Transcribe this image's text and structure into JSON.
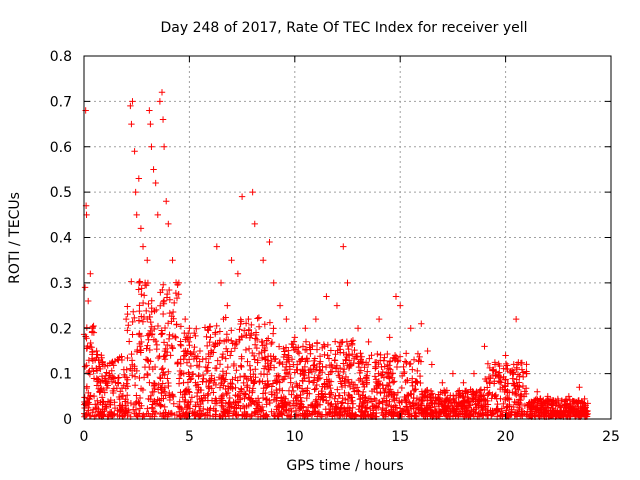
{
  "chart_data": {
    "type": "scatter",
    "title": "Day 248 of 2017, Rate Of TEC Index for receiver yell",
    "xlabel": "GPS time / hours",
    "ylabel": "ROTI / TECUs",
    "xlim": [
      0,
      25
    ],
    "ylim": [
      0,
      0.8
    ],
    "xticks": [
      "0",
      "5",
      "10",
      "15",
      "20",
      "25"
    ],
    "yticks": [
      "0",
      "0.1",
      "0.2",
      "0.3",
      "0.4",
      "0.5",
      "0.6",
      "0.7",
      "0.8"
    ],
    "grid": true,
    "marker": "+",
    "color": "#ff0000",
    "series": [
      {
        "name": "ROTI",
        "points": [
          [
            0.08,
            0.68
          ],
          [
            0.1,
            0.47
          ],
          [
            0.12,
            0.45
          ],
          [
            0.05,
            0.29
          ],
          [
            0.3,
            0.32
          ],
          [
            0.2,
            0.26
          ],
          [
            0.4,
            0.2
          ],
          [
            0.6,
            0.15
          ],
          [
            0.9,
            0.12
          ],
          [
            1.2,
            0.1
          ],
          [
            1.5,
            0.08
          ],
          [
            1.8,
            0.13
          ],
          [
            2.0,
            0.22
          ],
          [
            2.2,
            0.69
          ],
          [
            2.25,
            0.65
          ],
          [
            2.3,
            0.7
          ],
          [
            2.4,
            0.59
          ],
          [
            2.45,
            0.5
          ],
          [
            2.5,
            0.45
          ],
          [
            2.6,
            0.53
          ],
          [
            2.7,
            0.42
          ],
          [
            2.8,
            0.38
          ],
          [
            2.9,
            0.3
          ],
          [
            3.0,
            0.35
          ],
          [
            3.1,
            0.68
          ],
          [
            3.15,
            0.65
          ],
          [
            3.2,
            0.6
          ],
          [
            3.3,
            0.55
          ],
          [
            3.4,
            0.52
          ],
          [
            3.5,
            0.45
          ],
          [
            3.6,
            0.7
          ],
          [
            3.7,
            0.72
          ],
          [
            3.75,
            0.66
          ],
          [
            3.8,
            0.6
          ],
          [
            3.9,
            0.48
          ],
          [
            4.0,
            0.43
          ],
          [
            4.2,
            0.35
          ],
          [
            4.5,
            0.3
          ],
          [
            4.8,
            0.22
          ],
          [
            5.0,
            0.2
          ],
          [
            5.5,
            0.15
          ],
          [
            6.0,
            0.18
          ],
          [
            6.3,
            0.38
          ],
          [
            6.5,
            0.3
          ],
          [
            6.8,
            0.25
          ],
          [
            7.0,
            0.35
          ],
          [
            7.3,
            0.32
          ],
          [
            7.5,
            0.49
          ],
          [
            7.8,
            0.22
          ],
          [
            8.0,
            0.5
          ],
          [
            8.1,
            0.43
          ],
          [
            8.5,
            0.35
          ],
          [
            8.8,
            0.39
          ],
          [
            9.0,
            0.3
          ],
          [
            9.3,
            0.25
          ],
          [
            9.6,
            0.22
          ],
          [
            10.0,
            0.18
          ],
          [
            10.5,
            0.2
          ],
          [
            11.0,
            0.22
          ],
          [
            11.5,
            0.27
          ],
          [
            12.0,
            0.25
          ],
          [
            12.3,
            0.38
          ],
          [
            12.5,
            0.3
          ],
          [
            13.0,
            0.2
          ],
          [
            13.5,
            0.17
          ],
          [
            14.0,
            0.22
          ],
          [
            14.5,
            0.18
          ],
          [
            14.8,
            0.27
          ],
          [
            15.0,
            0.25
          ],
          [
            15.5,
            0.2
          ],
          [
            16.0,
            0.21
          ],
          [
            16.3,
            0.15
          ],
          [
            16.5,
            0.12
          ],
          [
            17.0,
            0.08
          ],
          [
            17.5,
            0.1
          ],
          [
            18.0,
            0.08
          ],
          [
            18.5,
            0.1
          ],
          [
            19.0,
            0.16
          ],
          [
            19.5,
            0.12
          ],
          [
            20.0,
            0.14
          ],
          [
            20.5,
            0.22
          ],
          [
            21.0,
            0.1
          ],
          [
            21.5,
            0.06
          ],
          [
            22.0,
            0.05
          ],
          [
            22.5,
            0.04
          ],
          [
            23.0,
            0.05
          ],
          [
            23.5,
            0.07
          ],
          [
            23.8,
            0.03
          ]
        ]
      }
    ]
  }
}
